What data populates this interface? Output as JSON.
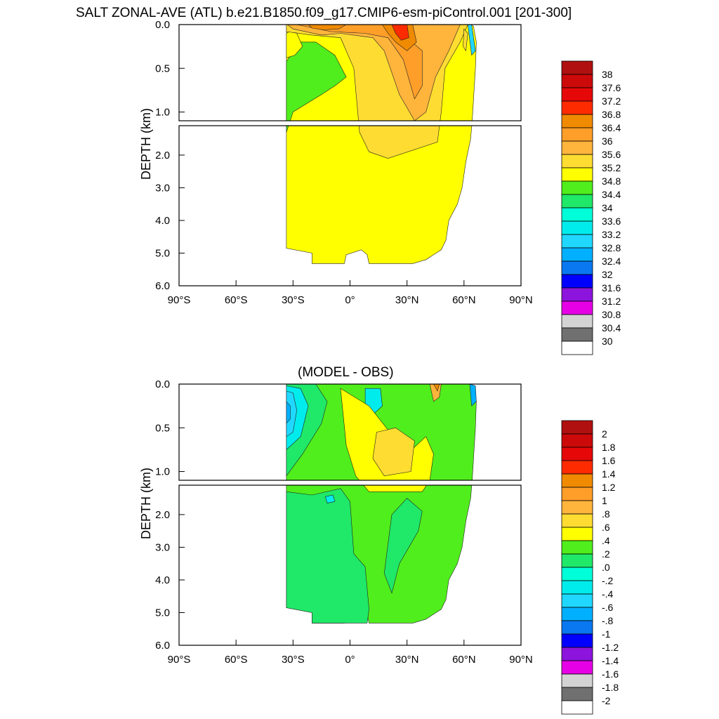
{
  "figure": {
    "title": "SALT ZONAL-AVE (ATL) b.e21.B1850.f09_g17.CMIP6-esm-piControl.001 [201-300]",
    "subtitle": "(MODEL - OBS)"
  },
  "chart_data": [
    {
      "type": "heatmap",
      "title": "SALT ZONAL-AVE (ATL) b.e21.B1850.f09_g17.CMIP6-esm-piControl.001 [201-300]",
      "ylabel": "DEPTH (km)",
      "xlabel": "",
      "x_ticks": [
        "90°S",
        "60°S",
        "30°S",
        "0°",
        "30°N",
        "60°N",
        "90°N"
      ],
      "x_tick_values": [
        -90,
        -60,
        -30,
        0,
        30,
        60,
        90
      ],
      "y_ticks": [
        "0.0",
        "0.5",
        "1.0",
        "2.0",
        "3.0",
        "4.0",
        "5.0",
        "6.0"
      ],
      "y_tick_values": [
        0,
        0.5,
        1.0,
        2.0,
        3.0,
        4.0,
        5.0,
        6.0
      ],
      "xlim": [
        -90,
        90
      ],
      "ylim": [
        0,
        6
      ],
      "y_axis": "depth increasing downward; upper panel 0–1.1 km expanded, lower panel 1.1–6 km",
      "colorbar_labels": [
        "38",
        "37.6",
        "37.2",
        "36.8",
        "36.4",
        "36",
        "35.6",
        "35.2",
        "34.8",
        "34.4",
        "34",
        "33.6",
        "33.2",
        "32.8",
        "32.4",
        "32",
        "31.6",
        "31.2",
        "30.8",
        "30.4",
        "30"
      ],
      "colorbar_colors": [
        "#b01010",
        "#cc0a0a",
        "#e60808",
        "#ff2b00",
        "#f08a00",
        "#ff9e28",
        "#ffb43c",
        "#ffdc32",
        "#ffff00",
        "#50ee1c",
        "#20e868",
        "#00ffd8",
        "#00ecec",
        "#20d8ff",
        "#00b0ff",
        "#0a78f0",
        "#0000ff",
        "#8c14dc",
        "#e600e6",
        "#d3d3d3",
        "#707070",
        "#ffffff"
      ]
    },
    {
      "type": "heatmap",
      "title": "(MODEL - OBS)",
      "ylabel": "DEPTH (km)",
      "xlabel": "",
      "x_ticks": [
        "90°S",
        "60°S",
        "30°S",
        "0°",
        "30°N",
        "60°N",
        "90°N"
      ],
      "x_tick_values": [
        -90,
        -60,
        -30,
        0,
        30,
        60,
        90
      ],
      "y_ticks": [
        "0.0",
        "0.5",
        "1.0",
        "2.0",
        "3.0",
        "4.0",
        "5.0",
        "6.0"
      ],
      "y_tick_values": [
        0,
        0.5,
        1.0,
        2.0,
        3.0,
        4.0,
        5.0,
        6.0
      ],
      "xlim": [
        -90,
        90
      ],
      "ylim": [
        0,
        6
      ],
      "colorbar_labels": [
        "2",
        "1.8",
        "1.6",
        "1.4",
        "1.2",
        "1",
        ".8",
        ".6",
        ".4",
        ".2",
        ".0",
        "-.2",
        "-.4",
        "-.6",
        "-.8",
        "-1",
        "-1.2",
        "-1.4",
        "-1.6",
        "-1.8",
        "-2"
      ],
      "colorbar_colors": [
        "#b01010",
        "#cc0a0a",
        "#e60808",
        "#ff2b00",
        "#f08a00",
        "#ff9e28",
        "#ffb43c",
        "#ffdc32",
        "#ffff00",
        "#50ee1c",
        "#20e868",
        "#00ffd8",
        "#00ecec",
        "#20d8ff",
        "#00b0ff",
        "#0a78f0",
        "#0000ff",
        "#8c14dc",
        "#e600e6",
        "#d3d3d3",
        "#707070",
        "#ffffff"
      ]
    }
  ]
}
